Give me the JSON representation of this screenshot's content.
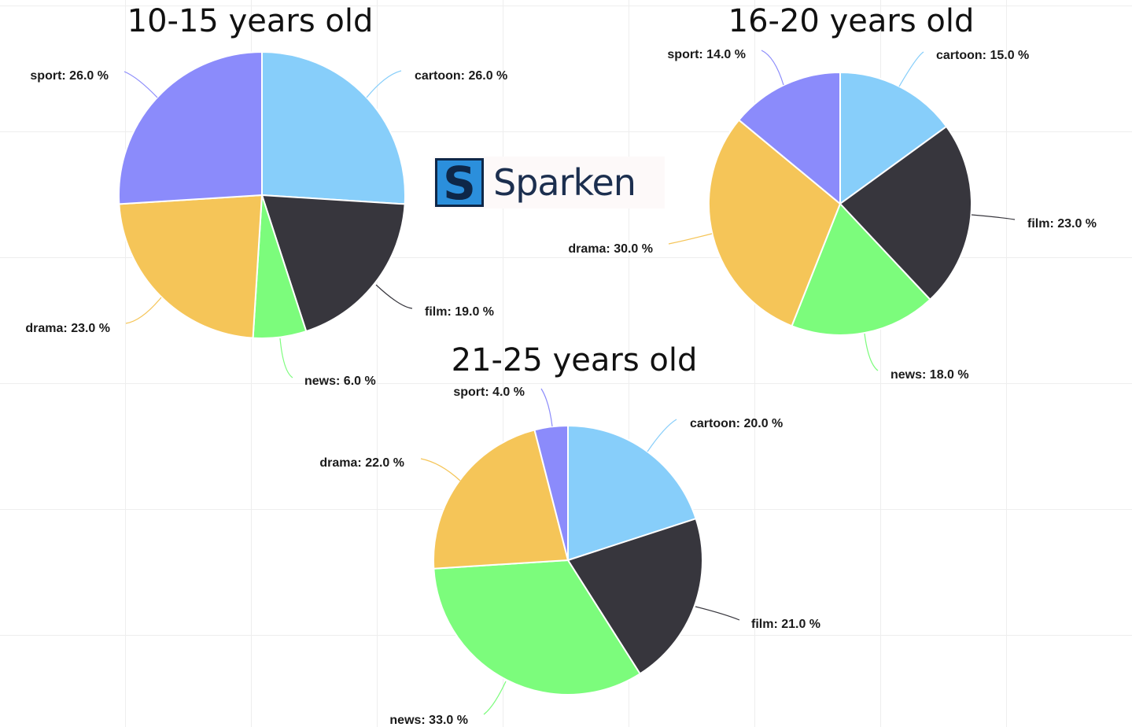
{
  "brand": {
    "name": "Sparken",
    "mark_letter": "S",
    "mark_color": "#2b8fdc",
    "mark_dark": "#0e2748",
    "text_color": "#1c2f4f"
  },
  "colors": {
    "cartoon": "#87cefa",
    "film": "#37363d",
    "news": "#7cfc7c",
    "drama": "#f5c558",
    "sport": "#8b8bfb"
  },
  "chart_data": [
    {
      "type": "pie",
      "title": "10-15 years old",
      "categories": [
        "cartoon",
        "film",
        "news",
        "drama",
        "sport"
      ],
      "values": [
        26.0,
        19.0,
        6.0,
        23.0,
        26.0
      ],
      "labels": [
        "cartoon: 26.0 %",
        "film: 19.0 %",
        "news: 6.0 %",
        "drama: 23.0 %",
        "sport: 26.0 %"
      ],
      "unit": "%"
    },
    {
      "type": "pie",
      "title": "16-20 years old",
      "categories": [
        "cartoon",
        "film",
        "news",
        "drama",
        "sport"
      ],
      "values": [
        15.0,
        23.0,
        18.0,
        30.0,
        14.0
      ],
      "labels": [
        "cartoon: 15.0 %",
        "film: 23.0 %",
        "news: 18.0 %",
        "drama: 30.0 %",
        "sport: 14.0 %"
      ],
      "unit": "%"
    },
    {
      "type": "pie",
      "title": "21-25 years old",
      "categories": [
        "cartoon",
        "film",
        "news",
        "drama",
        "sport"
      ],
      "values": [
        20.0,
        21.0,
        33.0,
        22.0,
        4.0
      ],
      "labels": [
        "cartoon: 20.0 %",
        "film: 21.0 %",
        "news: 33.0 %",
        "drama: 22.0 %",
        "sport: 4.0 %"
      ],
      "unit": "%"
    }
  ]
}
